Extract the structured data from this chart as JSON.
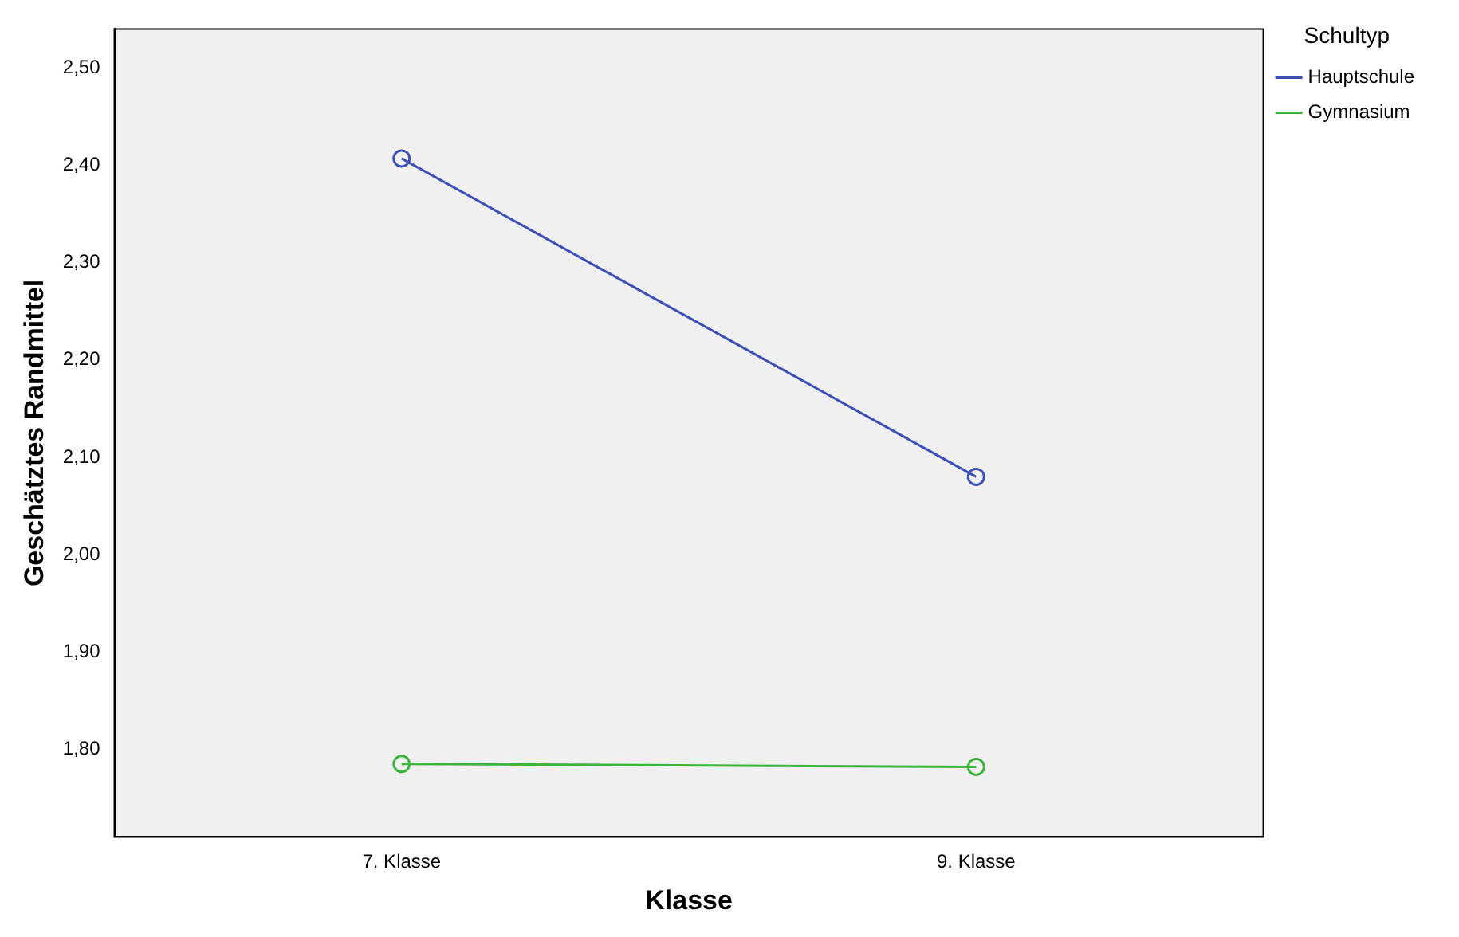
{
  "chart_data": {
    "type": "line",
    "xlabel": "Klasse",
    "ylabel": "Geschätztes Randmittel",
    "legend_title": "Schultyp",
    "categories": [
      "7. Klasse",
      "9. Klasse"
    ],
    "series": [
      {
        "name": "Hauptschule",
        "color": "#3c4fb4",
        "values": [
          2.407,
          2.08
        ]
      },
      {
        "name": "Gymnasium",
        "color": "#3cb43c",
        "values": [
          1.785,
          1.782
        ]
      }
    ],
    "ylim": [
      1.71,
      2.54
    ],
    "yticks": [
      {
        "value": 1.8,
        "label": "1,80"
      },
      {
        "value": 1.9,
        "label": "1,90"
      },
      {
        "value": 2.0,
        "label": "2,00"
      },
      {
        "value": 2.1,
        "label": "2,10"
      },
      {
        "value": 2.2,
        "label": "2,20"
      },
      {
        "value": 2.3,
        "label": "2,30"
      },
      {
        "value": 2.4,
        "label": "2,40"
      },
      {
        "value": 2.5,
        "label": "2,50"
      }
    ],
    "grid": false,
    "legend": "top right",
    "marker": "circle",
    "line_style": "solid"
  }
}
